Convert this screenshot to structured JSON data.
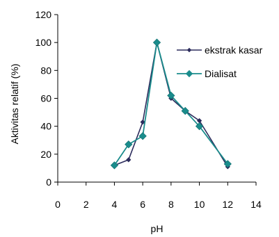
{
  "chart_data": {
    "type": "line",
    "xlabel": "pH",
    "ylabel": "Aktivitas relatif (%)",
    "xlim": [
      0,
      14
    ],
    "ylim": [
      0,
      120
    ],
    "xticks": [
      0,
      2,
      4,
      6,
      8,
      10,
      12,
      14
    ],
    "yticks": [
      0,
      20,
      40,
      60,
      80,
      100,
      120
    ],
    "grid": false,
    "legend_position": "right",
    "series": [
      {
        "name": "ekstrak kasar",
        "color": "#2b2b5c",
        "marker": "small-diamond",
        "x": [
          4,
          5,
          6,
          7,
          8,
          9,
          10,
          12
        ],
        "y": [
          12,
          16,
          43,
          100,
          60,
          51,
          44,
          11
        ]
      },
      {
        "name": "Dialisat",
        "color": "#1a8c8c",
        "marker": "diamond",
        "x": [
          4,
          5,
          6,
          7,
          8,
          9,
          10,
          12
        ],
        "y": [
          12,
          27,
          33,
          100,
          62,
          51,
          40,
          13
        ]
      }
    ]
  }
}
